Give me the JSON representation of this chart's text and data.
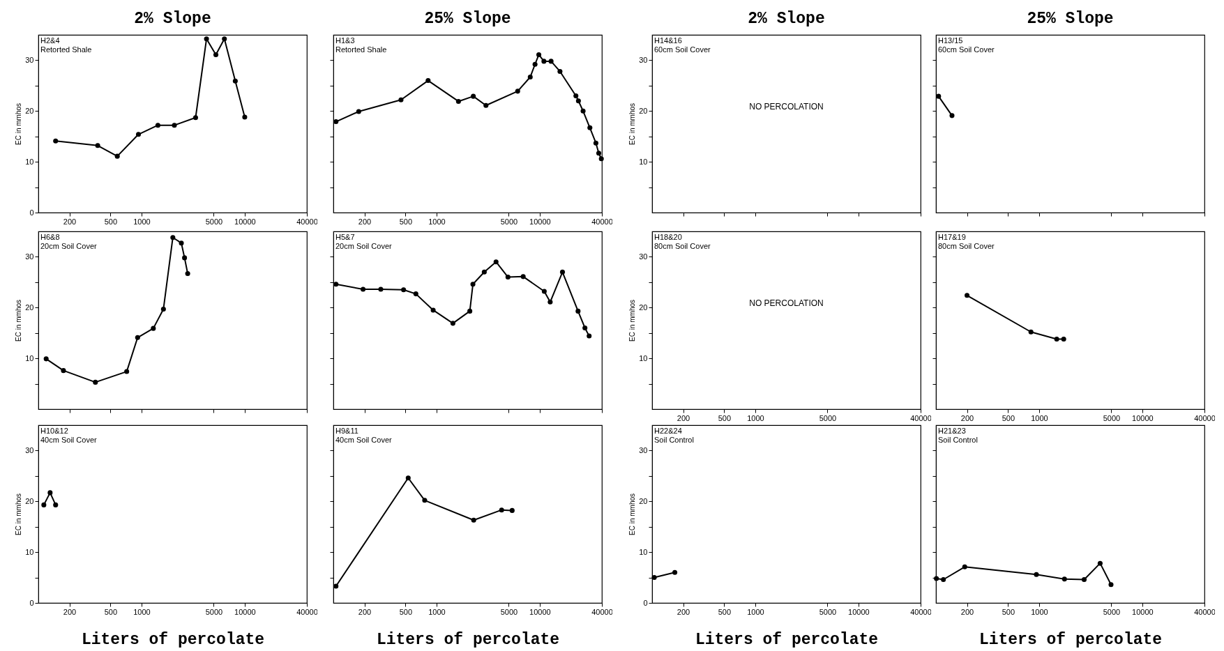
{
  "chart_data": [
    {
      "type": "line",
      "title": "2% Slope",
      "ylabel": "EC in mmhos",
      "annotations": [
        "H2&4",
        "Retorted Shale"
      ],
      "log": "x",
      "marker": "circle",
      "xlim": [
        100,
        40000
      ],
      "xticks": [
        200,
        500,
        1000,
        5000,
        10000,
        40000
      ],
      "ylim": [
        0,
        35
      ],
      "yticks": [
        {
          "value": 0,
          "label": "0"
        },
        {
          "value": 5,
          "label": null
        },
        10,
        {
          "value": 15,
          "label": null
        },
        20,
        {
          "value": 25,
          "label": null
        },
        30
      ],
      "series": [
        {
          "color": "#000000",
          "x": [
            147,
            376,
            582,
            933,
            1440,
            2080,
            3340,
            4260,
            5250,
            6350,
            8100,
            10000
          ],
          "values": [
            14.1,
            13.2,
            11.1,
            15.4,
            17.2,
            17.2,
            18.7,
            34.2,
            31.1,
            34.2,
            25.9,
            18.8
          ]
        }
      ]
    },
    {
      "type": "line",
      "title": "25% Slope",
      "annotations": [
        "H1&3",
        "Retorted Shale"
      ],
      "log": "x",
      "marker": "circle",
      "tick_labels": "x",
      "xlim": [
        100,
        40000
      ],
      "xticks": [
        200,
        500,
        1000,
        5000,
        10000,
        40000
      ],
      "ylim": [
        0,
        35
      ],
      "yticks": [
        {
          "value": 5,
          "label": null
        },
        {
          "value": 10,
          "label": null
        },
        {
          "value": 15,
          "label": null
        },
        {
          "value": 20,
          "label": null
        },
        {
          "value": 25,
          "label": null
        },
        {
          "value": 30,
          "label": null
        }
      ],
      "series": [
        {
          "color": "#000000",
          "x": [
            106,
            176,
            452,
            828,
            1630,
            2270,
            3010,
            6110,
            8090,
            9000,
            9790,
            10970,
            12870,
            15700,
            22400,
            23700,
            26300,
            30600,
            35000,
            37300,
            39500
          ],
          "values": [
            17.9,
            19.9,
            22.2,
            26.0,
            21.9,
            22.9,
            21.1,
            23.9,
            26.7,
            29.2,
            31.1,
            29.8,
            29.8,
            27.8,
            23.0,
            22.0,
            20.0,
            16.7,
            13.7,
            11.7,
            10.6
          ]
        }
      ]
    },
    {
      "type": "line",
      "title": "2% Slope",
      "ylabel": "EC in mmhos",
      "annotations": [
        "H14&16",
        "60cm Soil Cover",
        "NO PERCOLATION"
      ],
      "log": "x",
      "tick_labels": "y",
      "xlim": [
        100,
        40000
      ],
      "xticks": [
        200,
        500,
        1000,
        5000,
        10000,
        40000
      ],
      "ylim": [
        0,
        35
      ],
      "yticks": [
        {
          "value": 5,
          "label": null
        },
        10,
        {
          "value": 15,
          "label": null
        },
        20,
        {
          "value": 25,
          "label": null
        },
        30
      ],
      "marker": "none"
    },
    {
      "type": "line",
      "title": "25% Slope",
      "annotations": [
        "H13/15",
        "60cm Soil Cover"
      ],
      "log": "x",
      "marker": "circle",
      "tick_labels": false,
      "xlim": [
        100,
        40000
      ],
      "xticks": [
        200,
        500,
        1000,
        5000,
        10000,
        40000
      ],
      "ylim": [
        0,
        35
      ],
      "yticks": [
        {
          "value": 5,
          "label": null
        },
        {
          "value": 10,
          "label": null
        },
        {
          "value": 15,
          "label": null
        },
        {
          "value": 20,
          "label": null
        },
        {
          "value": 25,
          "label": null
        },
        {
          "value": 30,
          "label": null
        }
      ],
      "series": [
        {
          "color": "#000000",
          "x": [
            106,
            143
          ],
          "values": [
            22.9,
            19.1
          ]
        }
      ]
    },
    {
      "type": "line",
      "ylabel": "EC in mmhos",
      "annotations": [
        "H6&8",
        "20cm Soil Cover"
      ],
      "log": "x",
      "marker": "circle",
      "tick_labels": "y",
      "xlim": [
        100,
        40000
      ],
      "xticks": [
        200,
        500,
        1000,
        5000,
        10000,
        40000
      ],
      "ylim": [
        0,
        35
      ],
      "yticks": [
        {
          "value": 5,
          "label": null
        },
        10,
        {
          "value": 15,
          "label": null
        },
        20,
        {
          "value": 25,
          "label": null
        },
        30
      ],
      "series": [
        {
          "color": "#000000",
          "x": [
            119,
            175,
            357,
            718,
            916,
            1300,
            1630,
            2010,
            2430,
            2610,
            2800
          ],
          "values": [
            9.9,
            7.6,
            5.3,
            7.4,
            14.1,
            15.9,
            19.7,
            33.8,
            32.7,
            29.8,
            26.7
          ]
        }
      ]
    },
    {
      "type": "line",
      "annotations": [
        "H5&7",
        "20cm Soil Cover"
      ],
      "log": "x",
      "marker": "circle",
      "tick_labels": false,
      "xlim": [
        100,
        40000
      ],
      "xticks": [
        200,
        500,
        1000,
        5000,
        10000,
        40000
      ],
      "ylim": [
        0,
        35
      ],
      "yticks": [
        {
          "value": 5,
          "label": null
        },
        {
          "value": 10,
          "label": null
        },
        {
          "value": 15,
          "label": null
        },
        {
          "value": 20,
          "label": null
        },
        {
          "value": 25,
          "label": null
        },
        {
          "value": 30,
          "label": null
        }
      ],
      "series": [
        {
          "color": "#000000",
          "x": [
            106,
            194,
            288,
            479,
            630,
            927,
            1440,
            2100,
            2250,
            2900,
            3770,
            4920,
            6910,
            11060,
            12620,
            16600,
            23500,
            27400,
            30100
          ],
          "values": [
            24.6,
            23.6,
            23.6,
            23.5,
            22.7,
            19.5,
            16.9,
            19.3,
            24.6,
            27.0,
            29.0,
            26.0,
            26.1,
            23.2,
            21.1,
            27.0,
            19.3,
            16.0,
            14.4
          ]
        }
      ]
    },
    {
      "type": "line",
      "ylabel": "EC in mmhos",
      "annotations": [
        "H18&20",
        "80cm Soil Cover",
        "NO PERCOLATION"
      ],
      "log": "x",
      "xlim": [
        100,
        40000
      ],
      "xticks": [
        200,
        500,
        1000,
        5000,
        40000
      ],
      "ylim": [
        0,
        35
      ],
      "yticks": [
        {
          "value": 5,
          "label": null
        },
        10,
        {
          "value": 15,
          "label": null
        },
        20,
        {
          "value": 25,
          "label": null
        },
        30
      ],
      "marker": "none"
    },
    {
      "type": "line",
      "annotations": [
        "H17&19",
        "80cm Soil Cover"
      ],
      "log": "x",
      "marker": "circle",
      "tick_labels": "x",
      "xlim": [
        100,
        40000
      ],
      "xticks": [
        200,
        500,
        1000,
        5000,
        10000,
        40000
      ],
      "ylim": [
        0,
        35
      ],
      "yticks": [
        {
          "value": 5,
          "label": null
        },
        {
          "value": 10,
          "label": null
        },
        {
          "value": 15,
          "label": null
        },
        {
          "value": 20,
          "label": null
        },
        {
          "value": 25,
          "label": null
        },
        {
          "value": 30,
          "label": null
        }
      ],
      "series": [
        {
          "color": "#000000",
          "x": [
            200,
            833,
            1480,
            1730
          ],
          "values": [
            22.4,
            15.2,
            13.8,
            13.8
          ]
        }
      ]
    },
    {
      "type": "line",
      "xlabel": "Liters of percolate",
      "ylabel": "EC in mmhos",
      "annotations": [
        "H10&12",
        "40cm Soil Cover"
      ],
      "log": "x",
      "marker": "circle",
      "xlim": [
        100,
        40000
      ],
      "xticks": [
        200,
        500,
        1000,
        5000,
        10000,
        40000
      ],
      "ylim": [
        0,
        35
      ],
      "yticks": [
        {
          "value": 0,
          "label": "0"
        },
        {
          "value": 5,
          "label": null
        },
        10,
        {
          "value": 15,
          "label": null
        },
        20,
        {
          "value": 25,
          "label": null
        },
        30
      ],
      "series": [
        {
          "color": "#000000",
          "x": [
            113,
            130,
            147
          ],
          "values": [
            19.3,
            21.7,
            19.3
          ]
        }
      ]
    },
    {
      "type": "line",
      "xlabel": "Liters of percolate",
      "annotations": [
        "H9&11",
        "40cm Soil Cover"
      ],
      "log": "x",
      "marker": "circle",
      "tick_labels": "x",
      "xlim": [
        100,
        40000
      ],
      "xticks": [
        200,
        500,
        1000,
        5000,
        10000,
        40000
      ],
      "ylim": [
        0,
        35
      ],
      "yticks": [
        {
          "value": 5,
          "label": null
        },
        {
          "value": 10,
          "label": null
        },
        {
          "value": 15,
          "label": null
        },
        {
          "value": 20,
          "label": null
        },
        {
          "value": 25,
          "label": null
        },
        {
          "value": 30,
          "label": null
        }
      ],
      "series": [
        {
          "color": "#000000",
          "x": [
            106,
            531,
            767,
            2290,
            4270,
            5400
          ],
          "values": [
            3.3,
            24.6,
            20.2,
            16.3,
            18.3,
            18.2
          ]
        }
      ]
    },
    {
      "type": "line",
      "xlabel": "Liters of percolate",
      "ylabel": "EC in mmhos",
      "annotations": [
        "H22&24",
        "Soil Control"
      ],
      "log": "x",
      "marker": "circle",
      "xlim": [
        100,
        40000
      ],
      "xticks": [
        200,
        500,
        1000,
        5000,
        10000,
        40000
      ],
      "ylim": [
        0,
        35
      ],
      "yticks": [
        {
          "value": 0,
          "label": "0"
        },
        {
          "value": 5,
          "label": null
        },
        10,
        {
          "value": 15,
          "label": null
        },
        20,
        {
          "value": 25,
          "label": null
        },
        30
      ],
      "series": [
        {
          "color": "#000000",
          "x": [
            105,
            166
          ],
          "values": [
            5.0,
            6.0
          ]
        }
      ]
    },
    {
      "type": "line",
      "xlabel": "Liters of percolate",
      "annotations": [
        "H21&23",
        "Soil Control"
      ],
      "log": "x",
      "marker": "circle",
      "tick_labels": "x",
      "xlim": [
        100,
        40000
      ],
      "xticks": [
        200,
        500,
        1000,
        5000,
        10000,
        40000
      ],
      "ylim": [
        0,
        35
      ],
      "yticks": [
        {
          "value": 5,
          "label": null
        },
        {
          "value": 10,
          "label": null
        },
        {
          "value": 15,
          "label": null
        },
        {
          "value": 20,
          "label": null
        },
        {
          "value": 25,
          "label": null
        },
        {
          "value": 30,
          "label": null
        }
      ],
      "series": [
        {
          "color": "#000000",
          "x": [
            101,
            118,
            190,
            940,
            1760,
            2730,
            3900,
            4970
          ],
          "values": [
            4.8,
            4.6,
            7.1,
            5.6,
            4.7,
            4.6,
            7.8,
            3.6
          ]
        }
      ]
    }
  ]
}
